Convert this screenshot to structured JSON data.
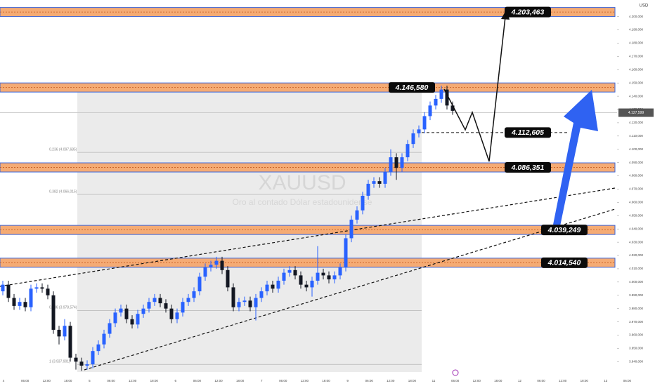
{
  "chart_data": {
    "type": "candlestick",
    "symbol": "XAUUSD",
    "description": "Oro al contado Dólar estadounidense",
    "currency": "USD",
    "x_labels": [
      "4",
      "06:00",
      "12:00",
      "18:00",
      "5",
      "06:00",
      "12:00",
      "18:00",
      "6",
      "06:00",
      "12:00",
      "18:00",
      "7",
      "06:00",
      "12:00",
      "18:00",
      "9",
      "06:00",
      "12:00",
      "18:00",
      "11",
      "06:00",
      "12:00",
      "18:00",
      "12",
      "06:00",
      "12:00",
      "18:00",
      "13",
      "06:00"
    ],
    "up_color": "#2962ff",
    "down_color": "#131722",
    "open": [
      3993,
      3998,
      3988,
      3982,
      3985,
      3981,
      3995,
      3996,
      3995,
      3990,
      3964,
      3959,
      3967,
      3943,
      3940,
      3937,
      3938,
      3948,
      3953,
      3961,
      3969,
      3977,
      3980,
      3972,
      3968,
      3976,
      3980,
      3985,
      3988,
      3984,
      3980,
      3972,
      3977,
      3985,
      3988,
      3993,
      4004,
      4011,
      4013,
      4016,
      4009,
      3996,
      3981,
      3985,
      3986,
      3981,
      3988,
      3993,
      3998,
      3995,
      4001,
      4007,
      4009,
      4005,
      3998,
      3996,
      4001,
      4007,
      4005,
      4002,
      4005,
      4011,
      4033,
      4047,
      4054,
      4065,
      4074,
      4076,
      4074,
      4083,
      4094,
      4086,
      4094,
      4104,
      4112,
      4115,
      4125,
      4133,
      4138,
      4145,
      4133
    ],
    "high": [
      4001,
      4001,
      3991,
      3988,
      3988,
      3998,
      3999,
      3999,
      3998,
      3993,
      3967,
      3972,
      3970,
      3946,
      3943,
      3941,
      3951,
      3956,
      3964,
      3972,
      3980,
      3983,
      3983,
      3975,
      3979,
      3983,
      3988,
      3991,
      3991,
      3987,
      3983,
      3980,
      3988,
      3991,
      3996,
      4007,
      4014,
      4016,
      4019,
      4019,
      4012,
      3999,
      3988,
      3989,
      3989,
      3991,
      3996,
      4001,
      4001,
      4004,
      4010,
      4012,
      4012,
      4008,
      4001,
      4004,
      4027,
      4010,
      4008,
      4008,
      4014,
      4036,
      4050,
      4057,
      4068,
      4077,
      4079,
      4079,
      4086,
      4100,
      4097,
      4097,
      4107,
      4115,
      4118,
      4128,
      4136,
      4141,
      4148,
      4148,
      4136
    ],
    "low": [
      3990,
      3985,
      3979,
      3979,
      3978,
      3978,
      3992,
      3992,
      3987,
      3961,
      3953,
      3956,
      3940,
      3934,
      3933,
      3934,
      3935,
      3945,
      3950,
      3958,
      3966,
      3974,
      3969,
      3965,
      3965,
      3973,
      3977,
      3982,
      3981,
      3977,
      3969,
      3969,
      3974,
      3982,
      3985,
      3990,
      4001,
      4008,
      4010,
      4006,
      3993,
      3978,
      3978,
      3982,
      3978,
      3971,
      3985,
      3990,
      3992,
      3992,
      3998,
      4004,
      4002,
      3995,
      3993,
      3989,
      3998,
      4002,
      3999,
      3999,
      4002,
      4008,
      4030,
      4044,
      4051,
      4062,
      4071,
      4071,
      4071,
      4080,
      4077,
      4083,
      4091,
      4101,
      4109,
      4112,
      4122,
      4130,
      4135,
      4130,
      4126
    ],
    "close": [
      3998,
      3988,
      3982,
      3985,
      3981,
      3995,
      3996,
      3995,
      3990,
      3964,
      3959,
      3967,
      3943,
      3940,
      3937,
      3938,
      3948,
      3953,
      3961,
      3969,
      3977,
      3980,
      3972,
      3968,
      3976,
      3980,
      3985,
      3988,
      3984,
      3980,
      3972,
      3977,
      3985,
      3988,
      3993,
      4004,
      4011,
      4013,
      4016,
      4009,
      3996,
      3981,
      3985,
      3986,
      3981,
      3988,
      3993,
      3998,
      3995,
      4001,
      4007,
      4009,
      4005,
      3998,
      3996,
      4001,
      4007,
      4005,
      4002,
      4005,
      4011,
      4033,
      4047,
      4054,
      4065,
      4074,
      4076,
      4074,
      4083,
      4094,
      4086,
      4094,
      4104,
      4112,
      4115,
      4125,
      4133,
      4138,
      4145,
      4133,
      4129
    ],
    "ylim": [
      3928,
      4212.5
    ],
    "yticks": [
      {
        "value": 3940,
        "label": "3.940,000"
      },
      {
        "value": 3950,
        "label": "3.950,000"
      },
      {
        "value": 3960,
        "label": "3.960,000"
      },
      {
        "value": 3970,
        "label": "3.970,000"
      },
      {
        "value": 3980,
        "label": "3.980,000"
      },
      {
        "value": 3990,
        "label": "3.990,000"
      },
      {
        "value": 4000,
        "label": "4.000,000"
      },
      {
        "value": 4010,
        "label": "4.010,000"
      },
      {
        "value": 4020,
        "label": "4.020,000"
      },
      {
        "value": 4030,
        "label": "4.030,000"
      },
      {
        "value": 4040,
        "label": "4.040,000"
      },
      {
        "value": 4050,
        "label": "4.050,000"
      },
      {
        "value": 4060,
        "label": "4.060,000"
      },
      {
        "value": 4070,
        "label": "4.070,000"
      },
      {
        "value": 4080,
        "label": "4.080,000"
      },
      {
        "value": 4090,
        "label": "4.090,000"
      },
      {
        "value": 4100,
        "label": "4.100,000"
      },
      {
        "value": 4110,
        "label": "4.110,000"
      },
      {
        "value": 4120,
        "label": "4.120,000"
      },
      {
        "value": 4130,
        "label": "4.130,000"
      },
      {
        "value": 4140,
        "label": "4.140,000"
      },
      {
        "value": 4150,
        "label": "4.150,000"
      },
      {
        "value": 4160,
        "label": "4.160,000"
      },
      {
        "value": 4170,
        "label": "4.170,000"
      },
      {
        "value": 4180,
        "label": "4.180,000"
      },
      {
        "value": 4190,
        "label": "4.190,000"
      },
      {
        "value": 4200,
        "label": "4.200,000"
      }
    ],
    "zones": [
      {
        "value": 4203.463,
        "label": "4.203,463"
      },
      {
        "value": 4146.58,
        "label": "4.146,580"
      },
      {
        "value": 4086.351,
        "label": "4.086,351"
      },
      {
        "value": 4039.249,
        "label": "4.039,249"
      },
      {
        "value": 4014.54,
        "label": "4.014,540"
      }
    ],
    "target_line": {
      "value": 4112.605,
      "label": "4.112,605"
    },
    "fib_levels": [
      {
        "value": 4097.685,
        "label": "0.236 (4.097,685)"
      },
      {
        "value": 4066.015,
        "label": "0.382 (4.066,015)"
      },
      {
        "value": 3978.574,
        "label": "0.786 (3.978,574)"
      },
      {
        "value": 3937.901,
        "label": "1 (3.937,901)"
      }
    ],
    "current_price": {
      "value": 4127.599,
      "label": "4.127,599"
    }
  }
}
